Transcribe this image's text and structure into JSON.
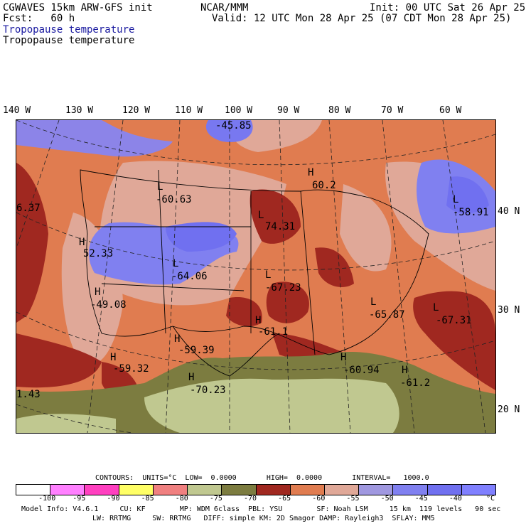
{
  "header": {
    "title_left": "CGWAVES 15km ARW-GFS init",
    "forecast": "Fcst:   60 h",
    "center": "NCAR/MMM",
    "init": "Init: 00 UTC Sat 26 Apr 25",
    "valid": "Valid: 12 UTC Mon 28 Apr 25 (07 CDT Mon 28 Apr 25)",
    "field_blue": "Tropopause temperature",
    "field_black": "Tropopause temperature"
  },
  "lon_labels": [
    "140 W",
    "130 W",
    "120 W",
    "110 W",
    "100 W",
    "90 W",
    "80 W",
    "70 W",
    "60 W"
  ],
  "lat_labels": [
    "40 N",
    "30 N",
    "20 N"
  ],
  "map_labels": [
    {
      "t": "-45.85"
    },
    {
      "t": "H"
    },
    {
      "t": "60.2"
    },
    {
      "t": "L"
    },
    {
      "t": "-60.63"
    },
    {
      "t": "6.37"
    },
    {
      "t": "H"
    },
    {
      "t": "52.33"
    },
    {
      "t": "L"
    },
    {
      "t": "-64.06"
    },
    {
      "t": "L"
    },
    {
      "t": "74.31"
    },
    {
      "t": "L"
    },
    {
      "t": "-58.91"
    },
    {
      "t": "H"
    },
    {
      "t": "-49.08"
    },
    {
      "t": "L"
    },
    {
      "t": "-67.23"
    },
    {
      "t": "L"
    },
    {
      "t": "-65.87"
    },
    {
      "t": "L"
    },
    {
      "t": "-67.31"
    },
    {
      "t": "H"
    },
    {
      "t": "-61.1"
    },
    {
      "t": "H"
    },
    {
      "t": "-59.39"
    },
    {
      "t": "H"
    },
    {
      "t": "-59.32"
    },
    {
      "t": "H"
    },
    {
      "t": "-60.94"
    },
    {
      "t": "H"
    },
    {
      "t": "-61.2"
    },
    {
      "t": "H"
    },
    {
      "t": "-70.23"
    },
    {
      "t": "1.43"
    }
  ],
  "contours_line": "CONTOURS:  UNITS=°C  LOW=  0.0000       HIGH=  0.0000       INTERVAL=   1000.0",
  "colorbar": {
    "colors": [
      "#ffffff",
      "#ff80ff",
      "#ff40c0",
      "#ffff66",
      "#f08080",
      "#c0c890",
      "#7c7c40",
      "#a02820",
      "#e07c50",
      "#e0a898",
      "#a098e0",
      "#8080f0",
      "#7070f0",
      "#8080ff"
    ],
    "ticks": [
      "-100",
      "-95",
      "-90",
      "-85",
      "-80",
      "-75",
      "-70",
      "-65",
      "-60",
      "-55",
      "-50",
      "-45",
      "-40",
      "°C"
    ]
  },
  "footer": {
    "line1": "Model Info: V4.6.1     CU: KF        MP: WDM 6class  PBL: YSU        SF: Noah LSM     15 km  119 levels   90 sec",
    "line2": "LW: RRTMG     SW: RRTMG   DIFF: simple KM: 2D Smagor DAMP: Rayleigh3  SFLAY: MM5"
  }
}
